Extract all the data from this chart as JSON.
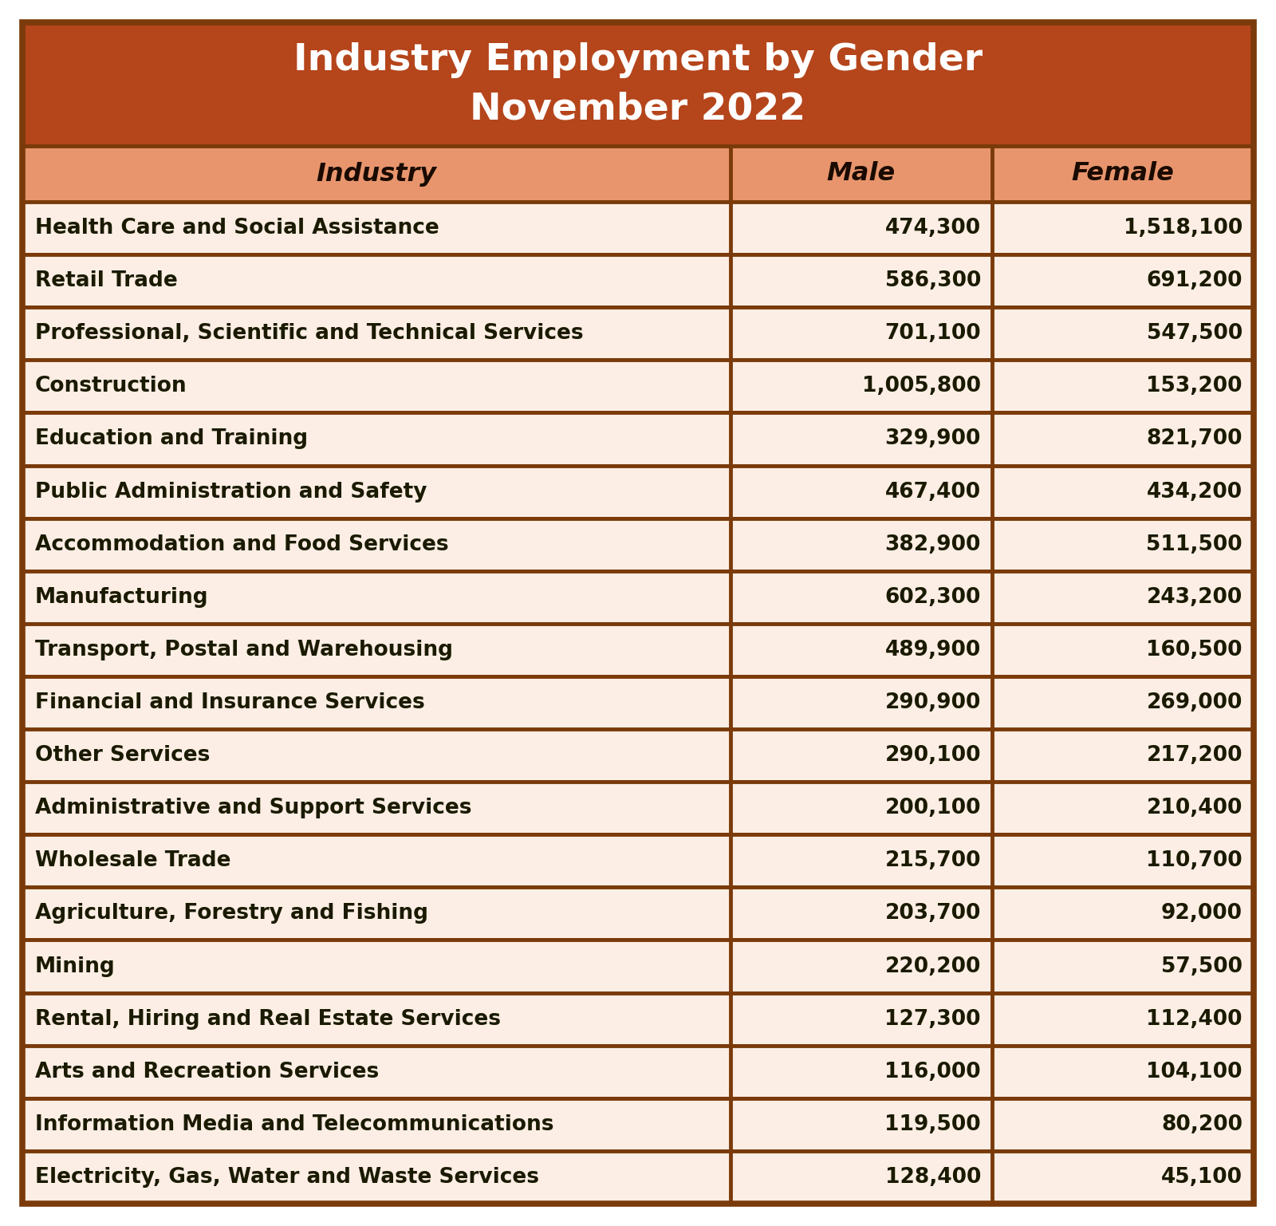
{
  "title_line1": "Industry Employment by Gender",
  "title_line2": "November 2022",
  "title_bg": "#b5451b",
  "title_text_color": "#ffffff",
  "header_bg": "#e8956d",
  "header_text_color": "#1a0a00",
  "row_bg": "#fceee4",
  "border_color": "#7a3a0a",
  "text_color": "#1a1a00",
  "col_headers": [
    "Industry",
    "Male",
    "Female"
  ],
  "industries": [
    "Health Care and Social Assistance",
    "Retail Trade",
    "Professional, Scientific and Technical Services",
    "Construction",
    "Education and Training",
    "Public Administration and Safety",
    "Accommodation and Food Services",
    "Manufacturing",
    "Transport, Postal and Warehousing",
    "Financial and Insurance Services",
    "Other Services",
    "Administrative and Support Services",
    "Wholesale Trade",
    "Agriculture, Forestry and Fishing",
    "Mining",
    "Rental, Hiring and Real Estate Services",
    "Arts and Recreation Services",
    "Information Media and Telecommunications",
    "Electricity, Gas, Water and Waste Services"
  ],
  "male": [
    474300,
    586300,
    701100,
    1005800,
    329900,
    467400,
    382900,
    602300,
    489900,
    290900,
    290100,
    200100,
    215700,
    203700,
    220200,
    127300,
    116000,
    119500,
    128400
  ],
  "female": [
    1518100,
    691200,
    547500,
    153200,
    821700,
    434200,
    511500,
    243200,
    160500,
    269000,
    217200,
    210400,
    110700,
    92000,
    57500,
    112400,
    104100,
    80200,
    45100
  ],
  "fig_width": 16.0,
  "fig_height": 15.37,
  "dpi": 100
}
